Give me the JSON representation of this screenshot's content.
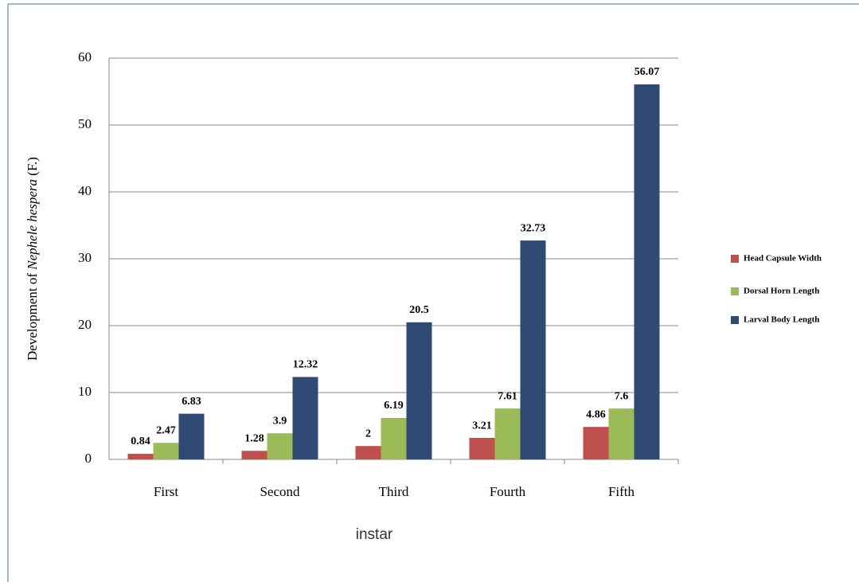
{
  "chart_data": {
    "type": "bar",
    "y_label": {
      "plain": "Development of",
      "italic": "Nephele hespera",
      "tail": "(F.)"
    },
    "x_label": "instar",
    "categories": [
      "First",
      "Second",
      "Third",
      "Fourth",
      "Fifth"
    ],
    "series": [
      {
        "name": "Head Capsule Width",
        "color": "#c0504d",
        "values": [
          0.84,
          1.28,
          2,
          3.21,
          4.86
        ]
      },
      {
        "name": "Dorsal Horn Length",
        "color": "#9bbb59",
        "values": [
          2.47,
          3.9,
          6.19,
          7.61,
          7.6
        ]
      },
      {
        "name": "Larval Body Length",
        "color": "#2e4a75",
        "values": [
          6.83,
          12.32,
          20.5,
          32.73,
          56.07
        ]
      }
    ],
    "ylim": [
      0,
      60
    ],
    "yticks": [
      0,
      10,
      20,
      30,
      40,
      50,
      60
    ],
    "grid": true,
    "legend": "right"
  }
}
